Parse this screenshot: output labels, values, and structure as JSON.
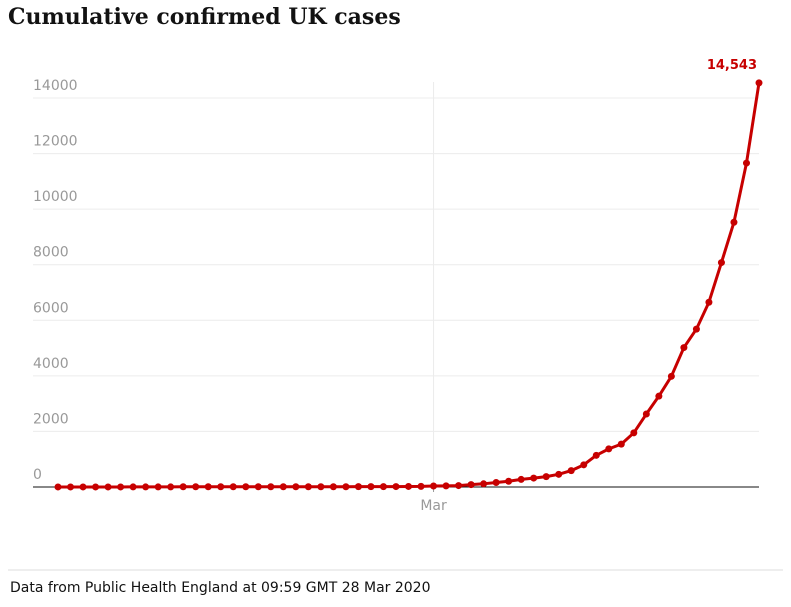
{
  "chart_data": {
    "type": "line",
    "title": "Cumulative confirmed UK cases",
    "source": "Data from Public Health England at 09:59 GMT 28 Mar 2020",
    "categories": [
      null,
      null,
      null,
      null,
      null,
      null,
      null,
      null,
      null,
      null,
      null,
      null,
      null,
      null,
      null,
      null,
      null,
      null,
      null,
      null,
      null,
      null,
      null,
      null,
      null,
      null,
      null,
      null,
      null,
      null,
      "Mar",
      null,
      null,
      null,
      null,
      null,
      null,
      null,
      null,
      null,
      null,
      null,
      null,
      null,
      null,
      null,
      null,
      null,
      null,
      null,
      null,
      null,
      null,
      null,
      null,
      null,
      null
    ],
    "values": [
      2,
      2,
      2,
      2,
      2,
      2,
      3,
      3,
      3,
      3,
      8,
      8,
      9,
      9,
      9,
      9,
      9,
      9,
      9,
      9,
      9,
      9,
      9,
      9,
      13,
      13,
      13,
      15,
      20,
      23,
      36,
      40,
      51,
      85,
      115,
      163,
      206,
      273,
      321,
      373,
      456,
      590,
      798,
      1140,
      1372,
      1543,
      1950,
      2626,
      3269,
      3983,
      5018,
      5683,
      6650,
      8077,
      9529,
      11658,
      14543
    ],
    "value_labels": [
      null,
      null,
      null,
      null,
      null,
      null,
      null,
      null,
      null,
      null,
      null,
      null,
      null,
      null,
      null,
      null,
      null,
      null,
      null,
      null,
      null,
      null,
      null,
      null,
      null,
      null,
      null,
      null,
      null,
      null,
      null,
      null,
      null,
      null,
      null,
      null,
      null,
      null,
      null,
      null,
      null,
      null,
      null,
      null,
      null,
      null,
      null,
      null,
      null,
      null,
      null,
      null,
      null,
      null,
      null,
      null,
      "14,543"
    ],
    "color": "#c70000",
    "ylim": [
      0,
      14000
    ],
    "yticks": [
      0,
      2000,
      4000,
      6000,
      8000,
      10000,
      12000,
      14000
    ],
    "grid": true
  }
}
